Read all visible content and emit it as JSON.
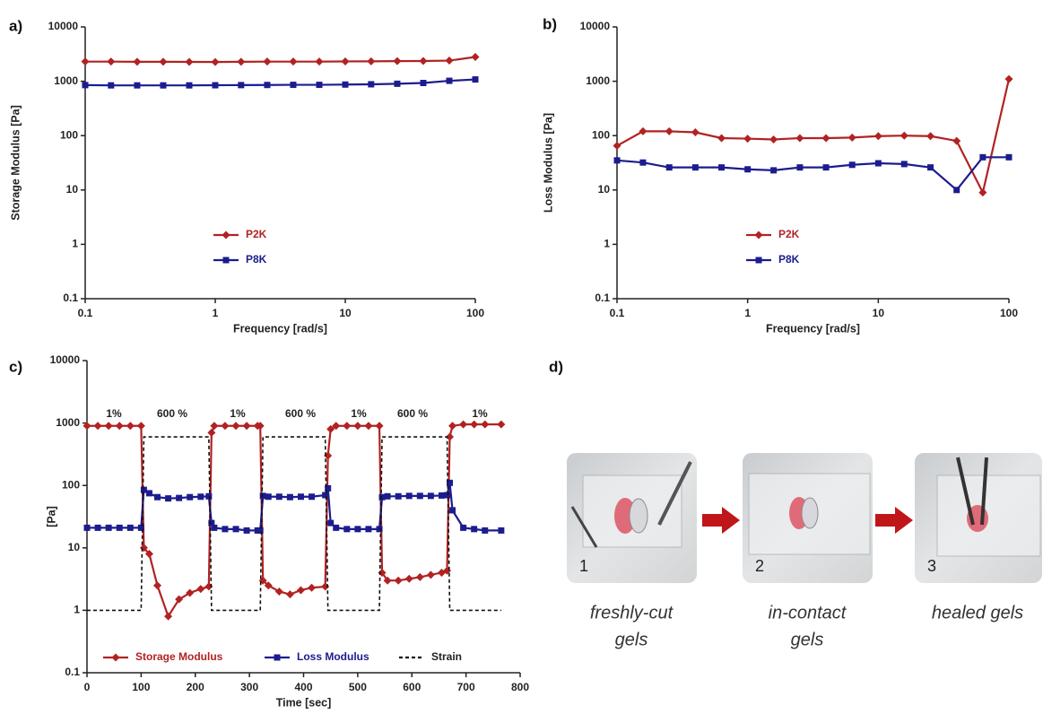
{
  "chart_data": [
    {
      "type": "line",
      "panel_label": "a)",
      "x_label": "Frequency [rad/s]",
      "y_label": "Storage Modulus [Pa]",
      "xscale": "log",
      "yscale": "log",
      "xlim": [
        0.1,
        100
      ],
      "ylim": [
        0.1,
        10000
      ],
      "xticks": [
        0.1,
        1,
        10,
        100
      ],
      "yticks": [
        0.1,
        1,
        10,
        100,
        1000,
        10000
      ],
      "legend": "lower-center",
      "x": [
        0.1,
        0.158,
        0.251,
        0.398,
        0.631,
        1,
        1.58,
        2.51,
        3.98,
        6.31,
        10,
        15.8,
        25.1,
        39.8,
        63.1,
        100
      ],
      "series": [
        {
          "name": "P2K",
          "color": "#b22222",
          "marker": "diamond",
          "values": [
            2300,
            2300,
            2280,
            2280,
            2270,
            2260,
            2280,
            2300,
            2300,
            2300,
            2320,
            2330,
            2350,
            2360,
            2400,
            2800
          ]
        },
        {
          "name": "P8K",
          "color": "#1c1c8f",
          "marker": "square",
          "values": [
            850,
            840,
            840,
            840,
            840,
            845,
            850,
            855,
            860,
            860,
            870,
            880,
            900,
            930,
            1020,
            1080
          ]
        }
      ]
    },
    {
      "type": "line",
      "panel_label": "b)",
      "x_label": "Frequency [rad/s]",
      "y_label": "Loss Modulus [Pa]",
      "xscale": "log",
      "yscale": "log",
      "xlim": [
        0.1,
        100
      ],
      "ylim": [
        0.1,
        10000
      ],
      "xticks": [
        0.1,
        1,
        10,
        100
      ],
      "yticks": [
        0.1,
        1,
        10,
        100,
        1000,
        10000
      ],
      "legend": "lower-center",
      "x": [
        0.1,
        0.158,
        0.251,
        0.398,
        0.631,
        1,
        1.58,
        2.51,
        3.98,
        6.31,
        10,
        15.8,
        25.1,
        39.8,
        63.1,
        100
      ],
      "series": [
        {
          "name": "P2K",
          "color": "#b22222",
          "marker": "diamond",
          "values": [
            65,
            120,
            120,
            115,
            90,
            88,
            85,
            90,
            90,
            92,
            98,
            100,
            98,
            80,
            9,
            1100
          ]
        },
        {
          "name": "P8K",
          "color": "#1c1c8f",
          "marker": "square",
          "values": [
            35,
            32,
            26,
            26,
            26,
            24,
            23,
            26,
            26,
            29,
            31,
            30,
            26,
            10,
            40,
            40
          ]
        }
      ]
    },
    {
      "type": "line",
      "panel_label": "c)",
      "x_label": "Time [sec]",
      "y_label": "[Pa]",
      "xscale": "linear",
      "yscale": "log",
      "xlim": [
        0,
        800
      ],
      "ylim": [
        0.1,
        10000
      ],
      "xticks": [
        0,
        100,
        200,
        300,
        400,
        500,
        600,
        700,
        800
      ],
      "yticks": [
        0.1,
        1,
        10,
        100,
        1000,
        10000
      ],
      "legend": "lower-left",
      "annotations": [
        "1%",
        "600 %",
        "1%",
        "600 %",
        "1%",
        "600 %",
        "1%"
      ],
      "x": [
        0,
        20,
        40,
        60,
        80,
        100,
        105,
        115,
        130,
        150,
        170,
        190,
        210,
        225,
        230,
        235,
        255,
        275,
        295,
        315,
        320,
        325,
        335,
        355,
        375,
        395,
        415,
        440,
        445,
        450,
        460,
        480,
        500,
        520,
        540,
        545,
        555,
        575,
        595,
        615,
        635,
        655,
        665,
        670,
        675,
        695,
        715,
        735,
        765
      ],
      "series": [
        {
          "name": "Storage Modulus",
          "color": "#b22222",
          "marker": "diamond",
          "values": [
            900,
            900,
            900,
            900,
            900,
            900,
            10,
            8,
            2.5,
            0.8,
            1.5,
            1.9,
            2.2,
            2.4,
            700,
            900,
            900,
            900,
            900,
            900,
            900,
            3,
            2.5,
            2,
            1.8,
            2.1,
            2.3,
            2.4,
            300,
            800,
            900,
            900,
            900,
            900,
            900,
            4,
            3,
            3,
            3.2,
            3.4,
            3.7,
            4,
            4.3,
            600,
            900,
            950,
            950,
            950,
            950
          ]
        },
        {
          "name": "Loss Modulus",
          "color": "#1c1c8f",
          "marker": "square",
          "values": [
            21,
            21,
            21,
            21,
            21,
            21,
            85,
            75,
            65,
            62,
            63,
            65,
            66,
            67,
            25,
            21,
            20,
            20,
            19,
            19,
            19,
            68,
            66,
            66,
            65,
            66,
            66,
            70,
            90,
            25,
            21,
            20,
            20,
            20,
            20,
            65,
            67,
            67,
            68,
            68,
            68,
            69,
            70,
            110,
            40,
            21,
            20,
            19,
            19
          ]
        },
        {
          "name": "Strain",
          "color": "#111111",
          "marker": "none",
          "dash": true,
          "values": [
            1,
            1,
            1,
            1,
            1,
            1,
            600,
            600,
            600,
            600,
            600,
            600,
            600,
            600,
            1,
            1,
            1,
            1,
            1,
            1,
            1,
            600,
            600,
            600,
            600,
            600,
            600,
            600,
            1,
            1,
            1,
            1,
            1,
            1,
            1,
            600,
            600,
            600,
            600,
            600,
            600,
            600,
            600,
            1,
            1,
            1,
            1,
            1,
            1
          ]
        }
      ]
    }
  ],
  "figure_d": {
    "panel_label": "d)",
    "steps": [
      {
        "number": "1",
        "caption": [
          "freshly-cut",
          "gels"
        ]
      },
      {
        "number": "2",
        "caption": [
          "in-contact",
          "gels"
        ]
      },
      {
        "number": "3",
        "caption": [
          "healed gels"
        ]
      }
    ]
  }
}
